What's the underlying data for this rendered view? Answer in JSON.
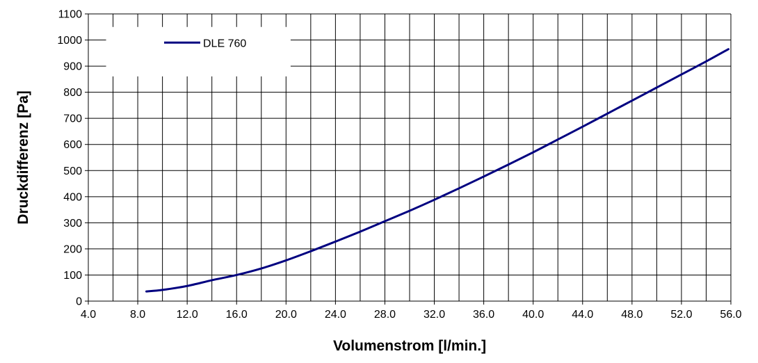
{
  "chart_data": {
    "type": "line",
    "xlabel": "Volumenstrom [l/min.]",
    "ylabel": "Druckdifferenz [Pa]",
    "xlim": [
      4.0,
      56.0
    ],
    "ylim": [
      0,
      1100
    ],
    "x_ticks": [
      "4.0",
      "8.0",
      "12.0",
      "16.0",
      "20.0",
      "24.0",
      "28.0",
      "32.0",
      "36.0",
      "40.0",
      "44.0",
      "48.0",
      "52.0",
      "56.0"
    ],
    "y_ticks": [
      "0",
      "100",
      "200",
      "300",
      "400",
      "500",
      "600",
      "700",
      "800",
      "900",
      "1000",
      "1100"
    ],
    "grid": "vertical every 2.0, horizontal every 100",
    "legend_position": "top-left",
    "series": [
      {
        "name": "DLE 760",
        "color": "#000080",
        "x": [
          8.7,
          10.0,
          12.0,
          14.0,
          16.0,
          18.0,
          20.0,
          22.0,
          24.0,
          26.0,
          28.0,
          30.0,
          32.0,
          34.0,
          36.0,
          38.0,
          40.0,
          42.0,
          44.0,
          46.0,
          48.0,
          50.0,
          52.0,
          54.0,
          55.8
        ],
        "y": [
          37,
          43,
          58,
          80,
          100,
          125,
          156,
          191,
          228,
          266,
          306,
          346,
          388,
          432,
          477,
          523,
          570,
          619,
          668,
          718,
          768,
          818,
          868,
          918,
          965
        ]
      }
    ]
  }
}
